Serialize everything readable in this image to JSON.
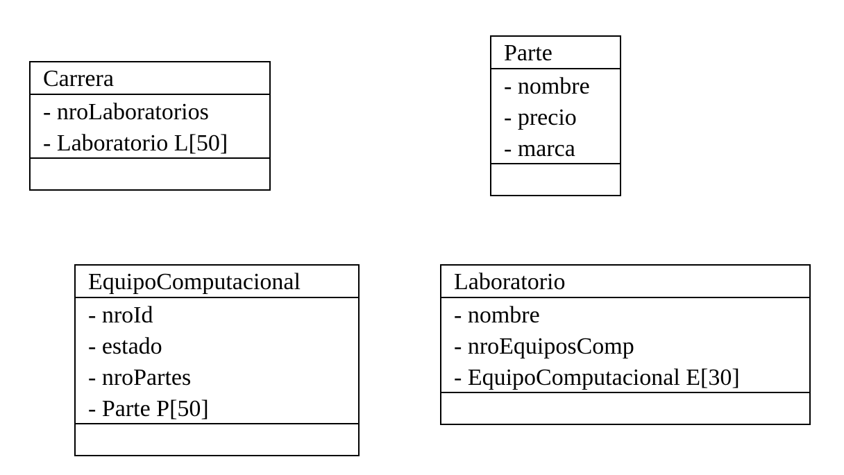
{
  "classes": {
    "carrera": {
      "name": "Carrera",
      "attributes": [
        "- nroLaboratorios",
        "- Laboratorio L[50]"
      ]
    },
    "parte": {
      "name": "Parte",
      "attributes": [
        "- nombre",
        "- precio",
        "- marca"
      ]
    },
    "equipo": {
      "name": "EquipoComputacional",
      "attributes": [
        "- nroId",
        "- estado",
        "- nroPartes",
        "- Parte P[50]"
      ]
    },
    "laboratorio": {
      "name": "Laboratorio",
      "attributes": [
        "- nombre",
        "- nroEquiposComp",
        "- EquipoComputacional E[30]"
      ]
    }
  }
}
